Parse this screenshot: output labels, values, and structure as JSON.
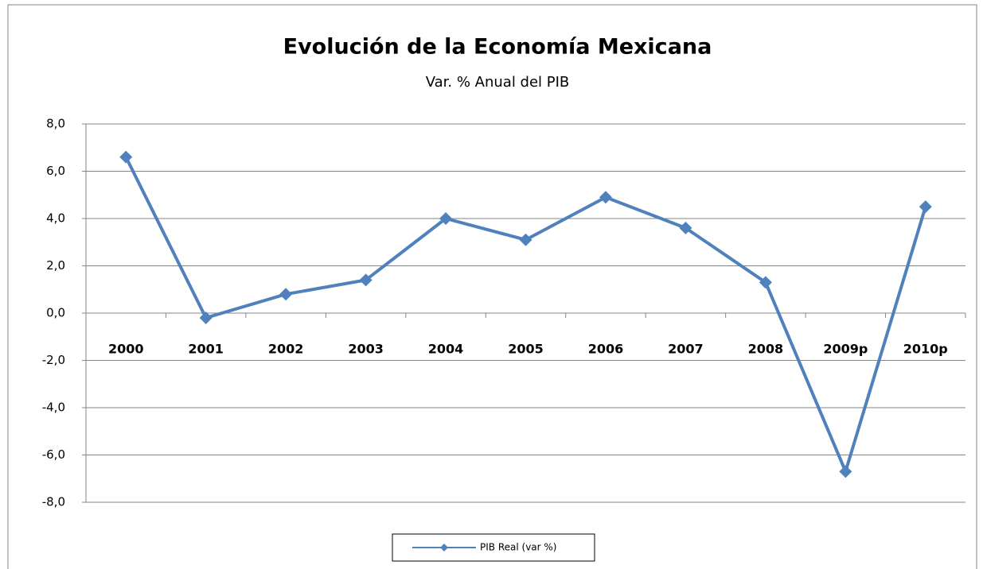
{
  "chart_data": {
    "type": "line",
    "title": "Evolución de la Economía Mexicana",
    "subtitle": "Var. % Anual del PIB",
    "categories": [
      "2000",
      "2001",
      "2002",
      "2003",
      "2004",
      "2005",
      "2006",
      "2007",
      "2008",
      "2009p",
      "2010p"
    ],
    "series": [
      {
        "name": "PIB Real (var %)",
        "color": "#4f81bd",
        "values": [
          6.6,
          -0.2,
          0.8,
          1.4,
          4.0,
          3.1,
          4.9,
          3.6,
          1.3,
          -6.7,
          4.5
        ]
      }
    ],
    "ylim": [
      -8,
      8
    ],
    "yticks": [
      {
        "value": -8,
        "label": "-8,0"
      },
      {
        "value": -6,
        "label": "-6,0"
      },
      {
        "value": -4,
        "label": "-4,0"
      },
      {
        "value": -2,
        "label": "-2,0"
      },
      {
        "value": 0,
        "label": "0,0"
      },
      {
        "value": 2,
        "label": "2,0"
      },
      {
        "value": 4,
        "label": "4,0"
      },
      {
        "value": 6,
        "label": "6,0"
      },
      {
        "value": 8,
        "label": "8,0"
      }
    ],
    "grid": true,
    "legend": "bottom"
  }
}
